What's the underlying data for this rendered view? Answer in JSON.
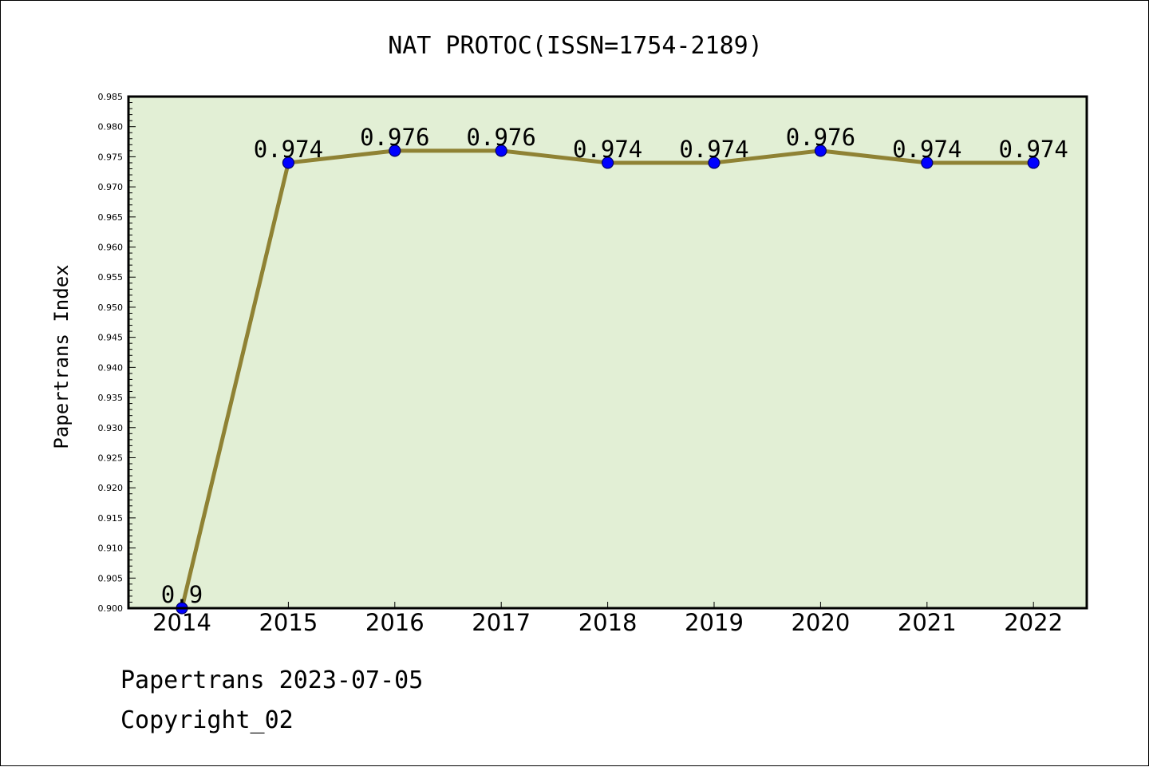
{
  "chart_data": {
    "type": "line",
    "title": "NAT PROTOC(ISSN=1754-2189)",
    "xlabel": "",
    "ylabel": "Papertrans Index",
    "categories": [
      "2014",
      "2015",
      "2016",
      "2017",
      "2018",
      "2019",
      "2020",
      "2021",
      "2022"
    ],
    "series": [
      {
        "values": [
          0.9,
          0.974,
          0.976,
          0.976,
          0.974,
          0.974,
          0.976,
          0.974,
          0.974
        ],
        "labels": [
          "0.9",
          "0.974",
          "0.976",
          "0.976",
          "0.974",
          "0.974",
          "0.976",
          "0.974",
          "0.974"
        ]
      }
    ],
    "ylim": [
      0.9,
      0.985
    ],
    "yticks": [
      "0.900",
      "0.905",
      "0.910",
      "0.915",
      "0.920",
      "0.925",
      "0.930",
      "0.935",
      "0.940",
      "0.945",
      "0.950",
      "0.955",
      "0.960",
      "0.965",
      "0.970",
      "0.975",
      "0.980",
      "0.985"
    ],
    "grid": false,
    "legend": "none",
    "colors": {
      "plot_background": "#e2efd5",
      "line": "#8f8234",
      "marker": "#0000ff",
      "marker_edge": "#000066"
    }
  },
  "footer": {
    "line1": "Papertrans 2023-07-05",
    "line2": "Copyright_02"
  }
}
